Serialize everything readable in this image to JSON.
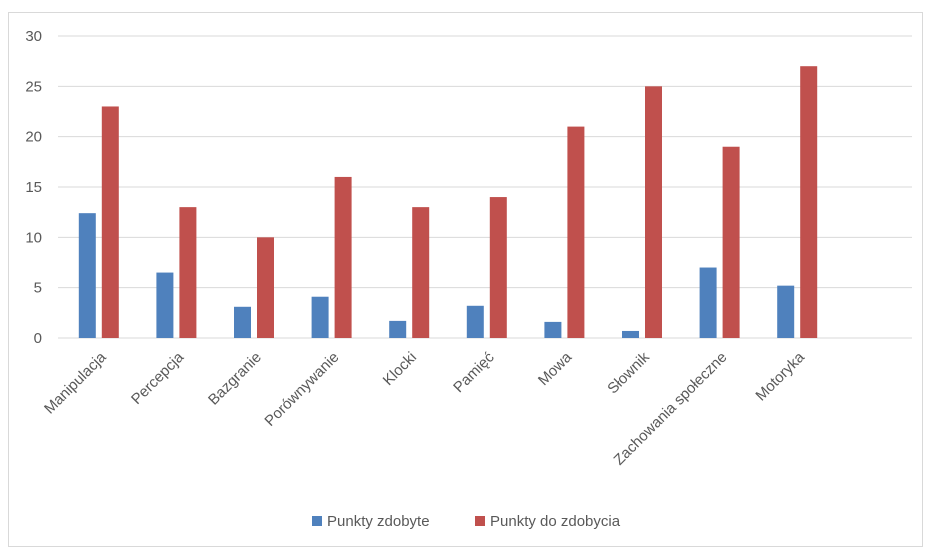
{
  "chart_data": {
    "type": "bar",
    "categories": [
      "Manipulacja",
      "Percepcja",
      "Bazgranie",
      "Porównywanie",
      "Klocki",
      "Pamięć",
      "Mowa",
      "Słownik",
      "Zachowania społeczne",
      "Motoryka"
    ],
    "series": [
      {
        "name": "Punkty zdobyte",
        "color": "#4f81bd",
        "values": [
          12.4,
          6.5,
          3.1,
          4.1,
          1.7,
          3.2,
          1.6,
          0.7,
          7.0,
          5.2
        ]
      },
      {
        "name": "Punkty do zdobycia",
        "color": "#c0504d",
        "values": [
          23,
          13,
          10,
          16,
          13,
          14,
          21,
          25,
          19,
          27
        ]
      }
    ],
    "yticks": [
      "0",
      "5",
      "10",
      "15",
      "20",
      "25",
      "30"
    ],
    "ylim": [
      0,
      30
    ],
    "grid": true,
    "legend_position": "bottom",
    "axis_color": "#d9d9d9"
  }
}
